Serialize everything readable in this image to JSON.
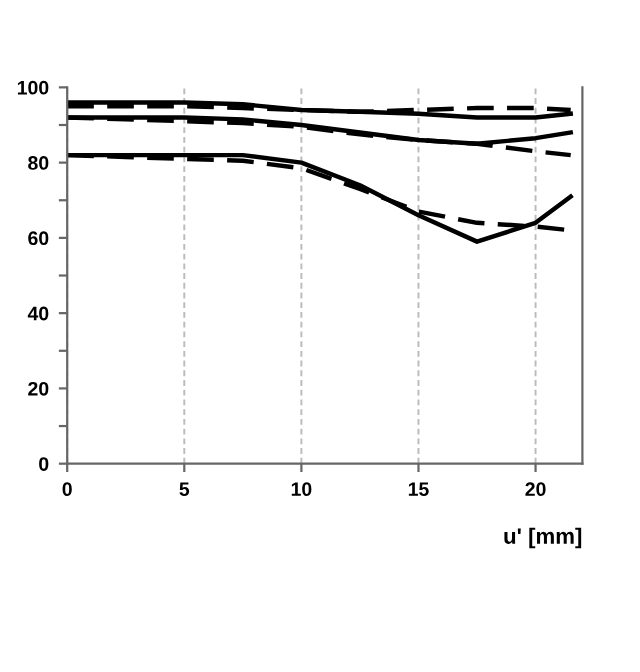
{
  "chart_data": {
    "type": "line",
    "xlabel": "u' [mm]",
    "x": [
      0,
      2.5,
      5,
      7.5,
      10,
      12.5,
      15,
      17.5,
      20,
      21.5
    ],
    "series": [
      {
        "color": "#000000",
        "line_style": "solid",
        "values": [
          96,
          96,
          96,
          95.5,
          94,
          93.5,
          93,
          92,
          92,
          93
        ]
      },
      {
        "color": "#000000",
        "line_style": "dashed",
        "values": [
          95,
          95,
          95,
          94.5,
          94,
          93.5,
          94,
          94.5,
          94.5,
          94
        ]
      },
      {
        "color": "#000000",
        "line_style": "solid",
        "values": [
          92,
          92,
          92,
          91.5,
          90,
          88,
          86,
          85,
          86.5,
          88
        ]
      },
      {
        "color": "#000000",
        "line_style": "dashed",
        "values": [
          92,
          91.5,
          91,
          90.5,
          89.5,
          87.5,
          86,
          85,
          83,
          82
        ]
      },
      {
        "color": "#000000",
        "line_style": "solid",
        "values": [
          82,
          82,
          82,
          82,
          80,
          74,
          66,
          59,
          64,
          71
        ]
      },
      {
        "color": "#000000",
        "line_style": "dashed",
        "values": [
          82,
          81.5,
          81,
          80.5,
          78.5,
          73,
          67,
          64,
          63,
          62
        ]
      }
    ],
    "xlim": [
      0,
      22
    ],
    "xticks": [
      0,
      5,
      10,
      15,
      20
    ],
    "ylim": [
      0,
      100
    ],
    "yticks": [
      0,
      {
        "value": 10,
        "label": null
      },
      20,
      {
        "value": 30,
        "label": null
      },
      40,
      {
        "value": 50,
        "label": null
      },
      60,
      {
        "value": 70,
        "label": null
      },
      80,
      {
        "value": 90,
        "label": null
      },
      100
    ],
    "grid": "x",
    "marker": "none"
  }
}
